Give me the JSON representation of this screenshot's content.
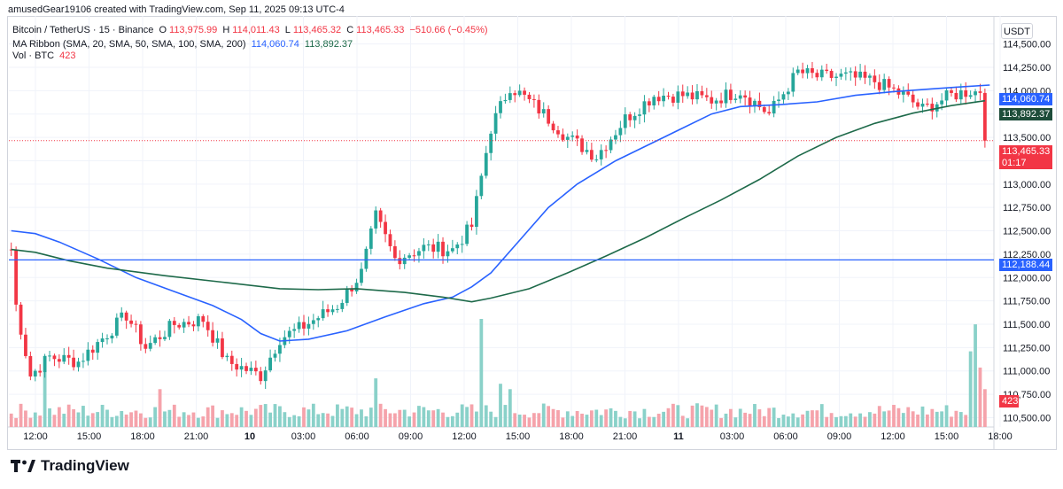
{
  "header": {
    "attribution": "amusedGear19106 created with TradingView.com, Sep 11, 2025 09:13 UTC-4"
  },
  "legend": {
    "symbol": "Bitcoin / TetherUS · 15 · Binance",
    "ohlc": {
      "o_label": "O",
      "o": "113,975.99",
      "h_label": "H",
      "h": "114,011.43",
      "l_label": "L",
      "l": "113,465.32",
      "c_label": "C",
      "c": "113,465.33",
      "change": "−510.66 (−0.45%)"
    },
    "ma_ribbon": {
      "label": "MA Ribbon (SMA, 20, SMA, 50, SMA, 100, SMA, 200)",
      "v1": "114,060.74",
      "v2": "113,892.37"
    },
    "volume": {
      "label": "Vol · BTC",
      "value": "423"
    }
  },
  "currency_button": "USDT",
  "price_labels": {
    "sma_fast": "114,060.74",
    "sma_slow": "113,892.37",
    "last_price": "113,465.33",
    "countdown": "01:17",
    "hline": "112,188.44",
    "volume": "423"
  },
  "footer": {
    "brand": "TradingView"
  },
  "colors": {
    "up": "#26a69a",
    "down": "#f23645",
    "up_vol": "#8ad1c9",
    "down_vol": "#f5a3ab",
    "sma_fast": "#2962ff",
    "sma_slow": "#1e6a4a",
    "hline": "#2962ff",
    "grid": "#f0f3fa"
  },
  "chart_data": {
    "type": "candlestick",
    "title": "Bitcoin / TetherUS · 15 · Binance",
    "ylim": [
      110400,
      114800
    ],
    "y_ticks": [
      "114,500.00",
      "114,250.00",
      "114,000.00",
      "113,750.00",
      "113,500.00",
      "113,250.00",
      "113,000.00",
      "112,750.00",
      "112,500.00",
      "112,250.00",
      "112,000.00",
      "111,750.00",
      "111,500.00",
      "111,250.00",
      "111,000.00",
      "110,750.00",
      "110,500.00"
    ],
    "y_tick_values": [
      114500,
      114250,
      114000,
      113750,
      113500,
      113250,
      113000,
      112750,
      112500,
      112250,
      112000,
      111750,
      111500,
      111250,
      111000,
      110750,
      110500
    ],
    "x_ticks": [
      "12:00",
      "15:00",
      "18:00",
      "21:00",
      "10",
      "03:00",
      "06:00",
      "09:00",
      "12:00",
      "15:00",
      "18:00",
      "21:00",
      "11",
      "03:00",
      "06:00",
      "09:00",
      "12:00",
      "15:00",
      "18:00"
    ],
    "x_tick_bold": [
      false,
      false,
      false,
      false,
      true,
      false,
      false,
      false,
      false,
      false,
      false,
      false,
      true,
      false,
      false,
      false,
      false,
      false,
      false
    ],
    "horizontal_line": 112188.44,
    "last_price": 113465.33,
    "x_range_bars": [
      0,
      205
    ],
    "close_anchors": [
      [
        0,
        112300
      ],
      [
        1,
        111700
      ],
      [
        4,
        110950
      ],
      [
        8,
        111150
      ],
      [
        14,
        111100
      ],
      [
        18,
        111300
      ],
      [
        24,
        111600
      ],
      [
        28,
        111250
      ],
      [
        34,
        111500
      ],
      [
        40,
        111550
      ],
      [
        45,
        111100
      ],
      [
        52,
        110950
      ],
      [
        56,
        111350
      ],
      [
        60,
        111450
      ],
      [
        68,
        111700
      ],
      [
        73,
        112050
      ],
      [
        76,
        112650
      ],
      [
        80,
        112200
      ],
      [
        86,
        112320
      ],
      [
        92,
        112300
      ],
      [
        96,
        112550
      ],
      [
        100,
        113600
      ],
      [
        104,
        114050
      ],
      [
        110,
        113800
      ],
      [
        116,
        113500
      ],
      [
        122,
        113300
      ],
      [
        128,
        113700
      ],
      [
        134,
        113950
      ],
      [
        140,
        113950
      ],
      [
        146,
        113900
      ],
      [
        152,
        114000
      ],
      [
        158,
        113750
      ],
      [
        164,
        114200
      ],
      [
        168,
        114150
      ],
      [
        174,
        114150
      ],
      [
        180,
        114100
      ],
      [
        186,
        113950
      ],
      [
        190,
        113800
      ],
      [
        196,
        113950
      ],
      [
        200,
        114000
      ],
      [
        202,
        113975.99
      ],
      [
        203,
        113465.33
      ]
    ],
    "volume_spikes": [
      [
        7,
        0.5
      ],
      [
        31,
        0.35
      ],
      [
        76,
        0.45
      ],
      [
        98,
        1.0
      ],
      [
        102,
        0.4
      ],
      [
        104,
        0.35
      ],
      [
        200,
        0.7
      ],
      [
        201,
        0.95
      ],
      [
        202,
        0.55
      ],
      [
        203,
        0.35
      ]
    ],
    "series": [
      {
        "name": "SMA fast",
        "color": "#2962ff",
        "points": [
          [
            0,
            112500
          ],
          [
            5,
            112470
          ],
          [
            10,
            112380
          ],
          [
            18,
            112200
          ],
          [
            26,
            112000
          ],
          [
            34,
            111850
          ],
          [
            42,
            111700
          ],
          [
            48,
            111550
          ],
          [
            52,
            111400
          ],
          [
            56,
            111320
          ],
          [
            62,
            111340
          ],
          [
            70,
            111430
          ],
          [
            78,
            111580
          ],
          [
            86,
            111720
          ],
          [
            92,
            111790
          ],
          [
            96,
            111900
          ],
          [
            100,
            112050
          ],
          [
            106,
            112400
          ],
          [
            112,
            112750
          ],
          [
            118,
            113000
          ],
          [
            126,
            113250
          ],
          [
            136,
            113500
          ],
          [
            146,
            113750
          ],
          [
            152,
            113830
          ],
          [
            160,
            113850
          ],
          [
            168,
            113880
          ],
          [
            176,
            113950
          ],
          [
            184,
            113990
          ],
          [
            192,
            114020
          ],
          [
            198,
            114040
          ],
          [
            204,
            114060.74
          ]
        ]
      },
      {
        "name": "SMA slow",
        "color": "#1e6a4a",
        "points": [
          [
            0,
            112300
          ],
          [
            5,
            112270
          ],
          [
            12,
            112180
          ],
          [
            20,
            112100
          ],
          [
            32,
            112020
          ],
          [
            44,
            111950
          ],
          [
            56,
            111880
          ],
          [
            64,
            111870
          ],
          [
            72,
            111880
          ],
          [
            82,
            111840
          ],
          [
            90,
            111790
          ],
          [
            96,
            111740
          ],
          [
            100,
            111780
          ],
          [
            108,
            111880
          ],
          [
            116,
            112050
          ],
          [
            124,
            112230
          ],
          [
            132,
            112420
          ],
          [
            140,
            112630
          ],
          [
            148,
            112830
          ],
          [
            156,
            113050
          ],
          [
            164,
            113300
          ],
          [
            172,
            113500
          ],
          [
            180,
            113650
          ],
          [
            188,
            113760
          ],
          [
            196,
            113840
          ],
          [
            203,
            113892.37
          ]
        ]
      }
    ]
  }
}
